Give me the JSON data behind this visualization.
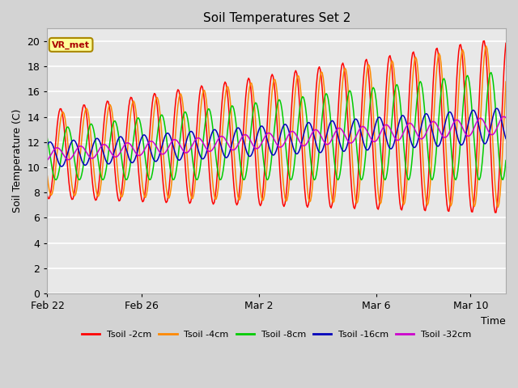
{
  "title": "Soil Temperatures Set 2",
  "xlabel": "Time",
  "ylabel": "Soil Temperature (C)",
  "ylim": [
    0,
    21
  ],
  "yticks": [
    0,
    2,
    4,
    6,
    8,
    10,
    12,
    14,
    16,
    18,
    20
  ],
  "fig_bg": "#d3d3d3",
  "plot_bg": "#e8e8e8",
  "grid_color": "white",
  "colors": {
    "2cm": "#ff0000",
    "4cm": "#ff8800",
    "8cm": "#00cc00",
    "16cm": "#0000bb",
    "32cm": "#cc00cc"
  },
  "labels": [
    "Tsoil -2cm",
    "Tsoil -4cm",
    "Tsoil -8cm",
    "Tsoil -16cm",
    "Tsoil -32cm"
  ],
  "annotation_text": "VR_met",
  "annotation_fx": 0.01,
  "annotation_fy": 0.93,
  "xtick_labels": [
    "Feb 22",
    "Feb 26",
    "Mar 2",
    "Mar 6",
    "Mar 10"
  ],
  "xtick_days": [
    0,
    4,
    9,
    14,
    18
  ],
  "total_days": 19.5,
  "pts_per_day": 24
}
